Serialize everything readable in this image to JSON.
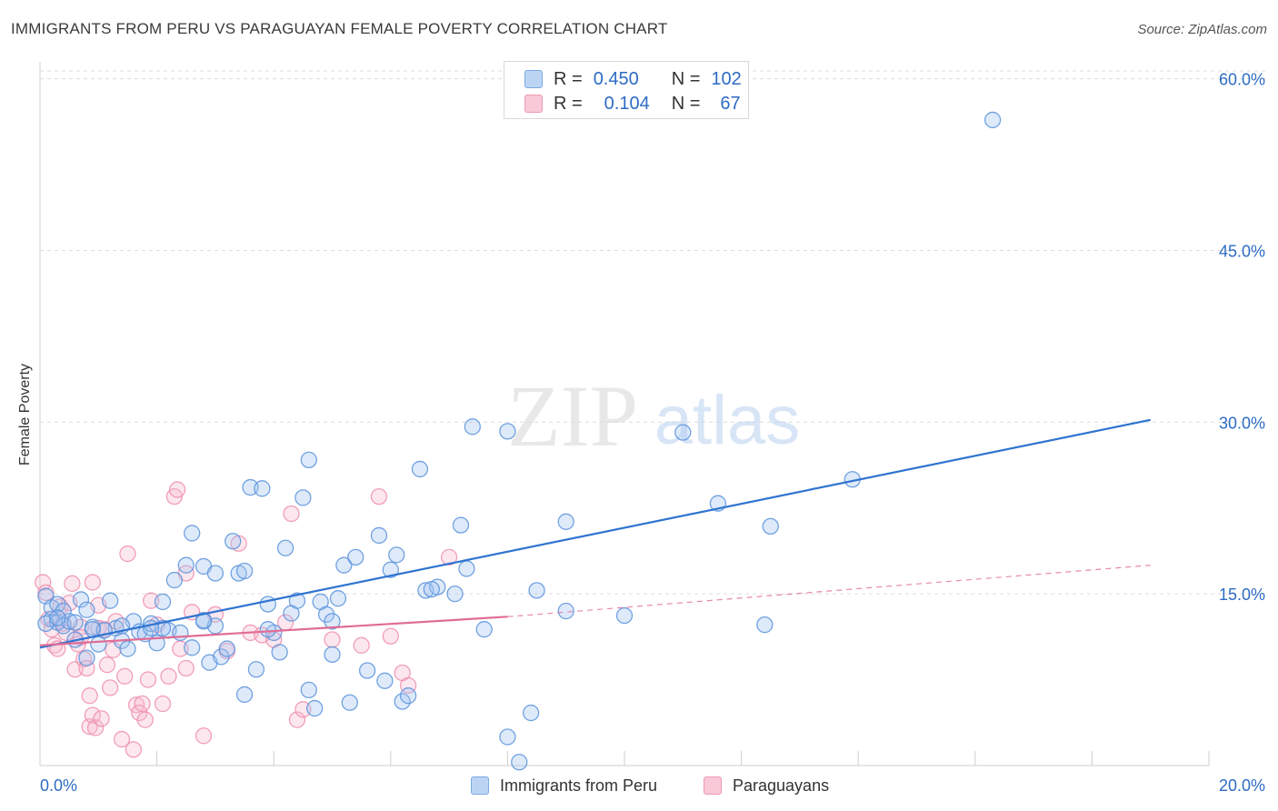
{
  "title": "IMMIGRANTS FROM PERU VS PARAGUAYAN FEMALE POVERTY CORRELATION CHART",
  "source": "Source: ZipAtlas.com",
  "watermark": {
    "zip": "ZIP",
    "atlas": "atlas"
  },
  "stats": [
    {
      "r_label": "R =",
      "r_value": "0.450",
      "n_label": "N =",
      "n_value": "102",
      "color": "#7aaae3",
      "fill": "#bcd4f3"
    },
    {
      "r_label": "R =",
      "r_value": "0.104",
      "n_label": "N =",
      "n_value": "67",
      "color": "#ef9ab5",
      "fill": "#f9c9d8"
    }
  ],
  "legend": [
    "Immigrants from Peru",
    "Paraguayans"
  ],
  "chart_data": {
    "type": "scatter",
    "title": "IMMIGRANTS FROM PERU VS PARAGUAYAN FEMALE POVERTY CORRELATION CHART",
    "xlabel": "",
    "ylabel": "Female Poverty",
    "xlim": [
      0,
      20
    ],
    "ylim": [
      0,
      61
    ],
    "x_tick_labels": [
      "0.0%",
      "20.0%"
    ],
    "y_ticks": [
      15,
      30,
      45,
      60
    ],
    "y_tick_labels": [
      "15.0%",
      "30.0%",
      "45.0%",
      "60.0%"
    ],
    "series": [
      {
        "name": "Immigrants from Peru",
        "color": "#5b93dc",
        "fill": "rgba(160,196,240,0.35)",
        "trend": {
          "x0": 0.0,
          "y0": 10.3,
          "x1": 19.0,
          "y1": 30.2,
          "color": "#2f74d0"
        },
        "points": [
          [
            0.1,
            14.8
          ],
          [
            0.2,
            12.8
          ],
          [
            0.2,
            13.8
          ],
          [
            0.3,
            14.1
          ],
          [
            0.3,
            12.5
          ],
          [
            0.4,
            13.5
          ],
          [
            0.4,
            12.2
          ],
          [
            0.5,
            12.6
          ],
          [
            0.6,
            11.0
          ],
          [
            0.7,
            14.5
          ],
          [
            0.8,
            13.6
          ],
          [
            0.8,
            9.4
          ],
          [
            0.9,
            12.1
          ],
          [
            1.0,
            10.6
          ],
          [
            1.2,
            14.4
          ],
          [
            1.3,
            12.0
          ],
          [
            1.4,
            10.9
          ],
          [
            1.5,
            10.2
          ],
          [
            1.6,
            12.6
          ],
          [
            1.7,
            11.7
          ],
          [
            1.8,
            11.5
          ],
          [
            1.9,
            12.4
          ],
          [
            2.0,
            10.7
          ],
          [
            2.1,
            14.3
          ],
          [
            2.2,
            11.8
          ],
          [
            2.3,
            16.2
          ],
          [
            2.4,
            11.6
          ],
          [
            2.5,
            17.5
          ],
          [
            2.6,
            10.3
          ],
          [
            2.6,
            20.3
          ],
          [
            2.8,
            12.7
          ],
          [
            2.8,
            17.4
          ],
          [
            2.9,
            9.0
          ],
          [
            3.0,
            16.8
          ],
          [
            3.0,
            12.2
          ],
          [
            3.1,
            9.5
          ],
          [
            3.2,
            10.2
          ],
          [
            3.3,
            19.6
          ],
          [
            3.4,
            16.8
          ],
          [
            3.5,
            6.2
          ],
          [
            3.5,
            17.0
          ],
          [
            3.6,
            24.3
          ],
          [
            3.7,
            8.4
          ],
          [
            3.8,
            24.2
          ],
          [
            3.9,
            14.1
          ],
          [
            4.0,
            11.6
          ],
          [
            4.1,
            9.9
          ],
          [
            4.2,
            19.0
          ],
          [
            4.3,
            13.3
          ],
          [
            4.4,
            14.4
          ],
          [
            4.5,
            23.4
          ],
          [
            4.6,
            6.6
          ],
          [
            4.6,
            26.7
          ],
          [
            4.7,
            5.0
          ],
          [
            4.8,
            14.3
          ],
          [
            4.9,
            13.2
          ],
          [
            5.0,
            9.7
          ],
          [
            5.1,
            14.6
          ],
          [
            5.2,
            17.5
          ],
          [
            5.3,
            5.5
          ],
          [
            5.4,
            18.2
          ],
          [
            5.6,
            8.3
          ],
          [
            5.8,
            20.1
          ],
          [
            5.9,
            7.4
          ],
          [
            6.0,
            17.1
          ],
          [
            6.1,
            18.4
          ],
          [
            6.2,
            5.6
          ],
          [
            6.3,
            6.1
          ],
          [
            6.5,
            25.9
          ],
          [
            6.6,
            15.3
          ],
          [
            6.8,
            15.6
          ],
          [
            7.1,
            15.0
          ],
          [
            7.2,
            21.0
          ],
          [
            7.3,
            17.2
          ],
          [
            7.4,
            29.6
          ],
          [
            7.6,
            11.9
          ],
          [
            8.0,
            29.2
          ],
          [
            8.0,
            2.5
          ],
          [
            8.2,
            0.3
          ],
          [
            8.4,
            4.6
          ],
          [
            8.5,
            15.3
          ],
          [
            9.0,
            21.3
          ],
          [
            9.0,
            13.5
          ],
          [
            10.0,
            13.1
          ],
          [
            11.0,
            29.1
          ],
          [
            11.6,
            22.9
          ],
          [
            12.4,
            12.3
          ],
          [
            12.5,
            20.9
          ],
          [
            13.9,
            25.0
          ],
          [
            16.3,
            56.4
          ],
          [
            0.1,
            12.4
          ],
          [
            0.3,
            12.9
          ],
          [
            0.6,
            12.5
          ],
          [
            1.1,
            11.8
          ],
          [
            1.4,
            12.2
          ],
          [
            2.1,
            12.0
          ],
          [
            3.9,
            11.9
          ],
          [
            5.0,
            12.6
          ],
          [
            1.9,
            12.0
          ],
          [
            0.9,
            11.9
          ],
          [
            6.7,
            15.4
          ],
          [
            2.8,
            12.6
          ]
        ]
      },
      {
        "name": "Paraguayans",
        "color": "#ee8fae",
        "fill": "rgba(246,186,206,0.35)",
        "trend": {
          "x0": 0.0,
          "y0": 10.5,
          "x1": 8.0,
          "y1": 13.0,
          "color": "#e06c96"
        },
        "trend_ext": {
          "x0": 8.0,
          "y0": 13.0,
          "x1": 19.0,
          "y1": 17.5
        },
        "points": [
          [
            0.05,
            16.0
          ],
          [
            0.1,
            15.1
          ],
          [
            0.15,
            12.8
          ],
          [
            0.2,
            11.9
          ],
          [
            0.25,
            10.5
          ],
          [
            0.3,
            10.2
          ],
          [
            0.35,
            13.9
          ],
          [
            0.4,
            12.4
          ],
          [
            0.45,
            11.6
          ],
          [
            0.5,
            14.2
          ],
          [
            0.55,
            15.9
          ],
          [
            0.6,
            8.4
          ],
          [
            0.65,
            10.6
          ],
          [
            0.7,
            12.1
          ],
          [
            0.7,
            11.2
          ],
          [
            0.75,
            9.3
          ],
          [
            0.8,
            8.5
          ],
          [
            0.85,
            6.1
          ],
          [
            0.85,
            3.4
          ],
          [
            0.9,
            4.4
          ],
          [
            0.9,
            16.0
          ],
          [
            0.95,
            3.3
          ],
          [
            1.0,
            12.0
          ],
          [
            1.0,
            14.0
          ],
          [
            1.05,
            4.1
          ],
          [
            1.1,
            11.9
          ],
          [
            1.15,
            8.8
          ],
          [
            1.2,
            6.8
          ],
          [
            1.25,
            10.1
          ],
          [
            1.3,
            12.6
          ],
          [
            1.4,
            2.3
          ],
          [
            1.45,
            7.8
          ],
          [
            1.5,
            18.5
          ],
          [
            1.6,
            1.4
          ],
          [
            1.65,
            5.3
          ],
          [
            1.7,
            4.6
          ],
          [
            1.75,
            5.4
          ],
          [
            1.8,
            4.0
          ],
          [
            1.85,
            7.5
          ],
          [
            1.9,
            14.4
          ],
          [
            2.0,
            12.3
          ],
          [
            2.1,
            5.4
          ],
          [
            2.2,
            7.8
          ],
          [
            2.3,
            23.5
          ],
          [
            2.35,
            24.1
          ],
          [
            2.4,
            10.2
          ],
          [
            2.5,
            8.5
          ],
          [
            2.5,
            16.8
          ],
          [
            2.6,
            13.4
          ],
          [
            2.8,
            2.6
          ],
          [
            3.0,
            13.2
          ],
          [
            3.2,
            10.0
          ],
          [
            3.4,
            19.4
          ],
          [
            3.6,
            11.6
          ],
          [
            3.8,
            11.4
          ],
          [
            4.0,
            11.0
          ],
          [
            4.2,
            12.5
          ],
          [
            4.3,
            22.0
          ],
          [
            4.4,
            4.0
          ],
          [
            4.5,
            4.9
          ],
          [
            5.0,
            11.0
          ],
          [
            5.5,
            10.5
          ],
          [
            5.8,
            23.5
          ],
          [
            6.0,
            11.3
          ],
          [
            6.2,
            8.1
          ],
          [
            6.3,
            7.0
          ],
          [
            7.0,
            18.2
          ]
        ]
      }
    ]
  }
}
